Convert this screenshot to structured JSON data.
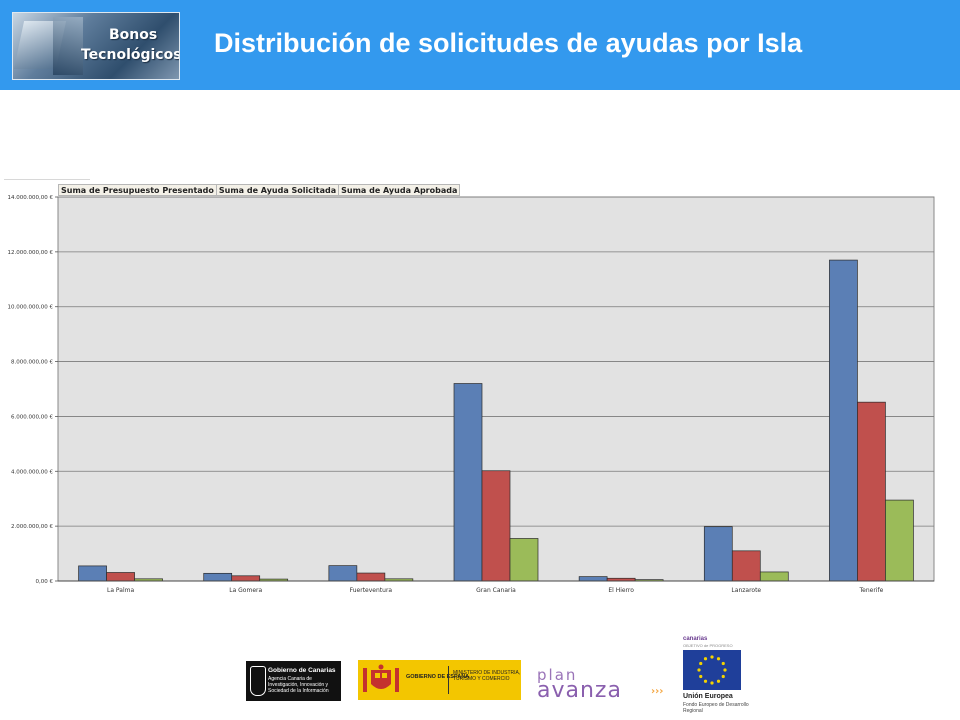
{
  "header": {
    "title": "Distribución de solicitudes de ayudas por Isla",
    "logo_line1": "Bonos",
    "logo_line2": "Tecnológicos"
  },
  "colors": {
    "header_bg": "#3399ee",
    "series": [
      "#5b7fb5",
      "#c0504d",
      "#9bbb59"
    ],
    "plot_bg": "#e2e2e2"
  },
  "chart_data": {
    "type": "bar",
    "categories": [
      "La Palma",
      "La Gomera",
      "Fuerteventura",
      "Gran Canaria",
      "El Hierro",
      "Lanzarote",
      "Tenerife"
    ],
    "series": [
      {
        "name": "Suma de Presupuesto Presentado",
        "values": [
          550000,
          280000,
          560000,
          7200000,
          160000,
          1980000,
          11700000
        ]
      },
      {
        "name": "Suma de Ayuda Solicitada",
        "values": [
          310000,
          190000,
          290000,
          4020000,
          100000,
          1100000,
          6520000
        ]
      },
      {
        "name": "Suma de Ayuda Aprobada",
        "values": [
          80000,
          70000,
          80000,
          1550000,
          50000,
          330000,
          2950000
        ]
      }
    ],
    "yticks": [
      "0,00 €",
      "2.000.000,00 €",
      "4.000.000,00 €",
      "6.000.000,00 €",
      "8.000.000,00 €",
      "10.000.000,00 €",
      "12.000.000,00 €",
      "14.000.000,00 €"
    ],
    "ylim": [
      0,
      14000000
    ],
    "grid": true,
    "legend_placement": "top-left"
  },
  "footer": {
    "gobierno_canarias_title": "Gobierno de Canarias",
    "gobierno_canarias_sub": "Agencia Canaria de Investigación, Innovación y Sociedad de la Información",
    "gobierno_espana": "GOBIERNO DE ESPAÑA",
    "ministerio": "MINISTERIO DE INDUSTRIA, TURISMO Y COMERCIO",
    "plan": "plan",
    "avanza": "avanza",
    "avanza_dots": "›››",
    "canarias": "canarias",
    "objetivo": "OBJETIVO de PROGRESO",
    "union_europea": "Unión Europea",
    "fondo": "Fondo Europeo de Desarrollo Regional"
  }
}
